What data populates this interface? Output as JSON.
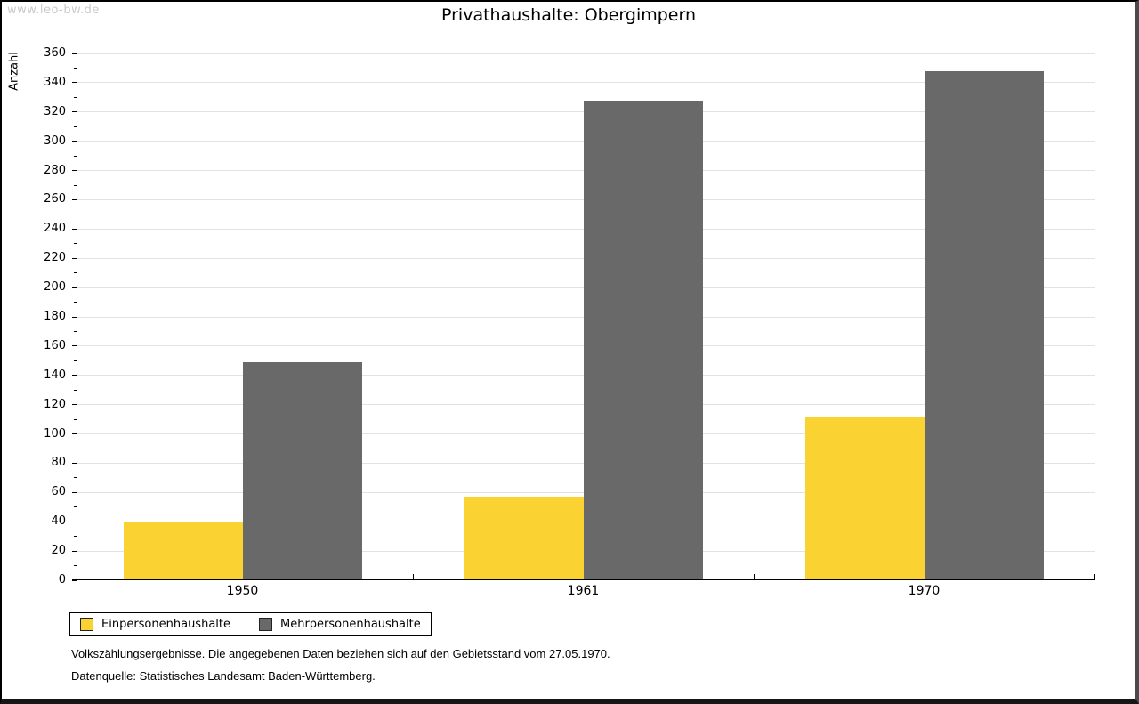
{
  "watermark": "www.leo-bw.de",
  "title": "Privathaushalte: Obergimpern",
  "footer": {
    "line1": "Volkszählungsergebnisse. Die angegebenen Daten beziehen sich auf den Gebietsstand vom 27.05.1970.",
    "line2": "Datenquelle: Statistisches Landesamt Baden-Württemberg."
  },
  "colors": {
    "einpersonenhaushalte": "#FAD332",
    "mehrpersonenhaushalte": "#696969",
    "grid": "#E2E2E2",
    "axis": "#000000",
    "watermark": "#C9C9C9"
  },
  "chart_data": {
    "type": "bar",
    "title": "Privathaushalte: Obergimpern",
    "xlabel": "",
    "ylabel": "Anzahl",
    "categories": [
      "1950",
      "1961",
      "1970"
    ],
    "series": [
      {
        "name": "Einpersonenhaushalte",
        "color": "#FAD332",
        "values": [
          40,
          57,
          112
        ]
      },
      {
        "name": "Mehrpersonenhaushalte",
        "color": "#696969",
        "values": [
          149,
          327,
          348
        ]
      }
    ],
    "ylim": [
      0,
      360
    ],
    "ytick_step": 20,
    "yminor_step": 10,
    "grid": true,
    "legend_position": "bottom-left",
    "footnote": "Volkszählungsergebnisse. Die angegebenen Daten beziehen sich auf den Gebietsstand vom 27.05.1970.",
    "source": "Datenquelle: Statistisches Landesamt Baden-Württemberg."
  }
}
